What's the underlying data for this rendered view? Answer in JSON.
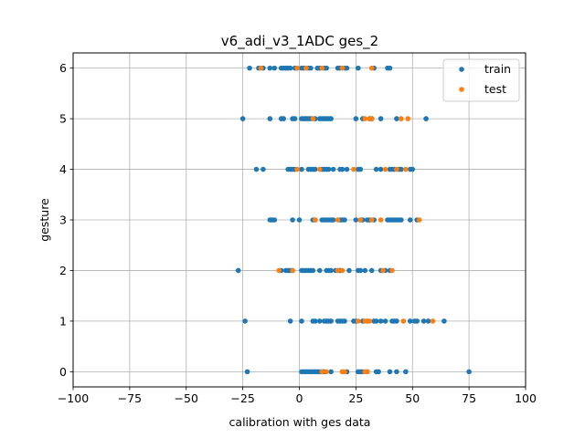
{
  "chart_data": {
    "type": "scatter",
    "title": "v6_adi_v3_1ADC ges_2",
    "xlabel": "calibration with ges data",
    "ylabel": "gesture",
    "xlim": [
      -100,
      100
    ],
    "ylim": [
      -0.3,
      6.3
    ],
    "xticks": [
      -100,
      -75,
      -50,
      -25,
      0,
      25,
      50,
      75,
      100
    ],
    "xtick_labels": [
      "−100",
      "−75",
      "−50",
      "−25",
      "0",
      "25",
      "50",
      "75",
      "100"
    ],
    "yticks": [
      0,
      1,
      2,
      3,
      4,
      5,
      6
    ],
    "ytick_labels": [
      "0",
      "1",
      "2",
      "3",
      "4",
      "5",
      "6"
    ],
    "grid": true,
    "legend_position": "top-right",
    "series": [
      {
        "name": "train",
        "color": "#1f77b4",
        "points": [
          [
            -23,
            0
          ],
          [
            1,
            0
          ],
          [
            2,
            0
          ],
          [
            3,
            0
          ],
          [
            4,
            0
          ],
          [
            5,
            0
          ],
          [
            6,
            0
          ],
          [
            7,
            0
          ],
          [
            8,
            0
          ],
          [
            9,
            0
          ],
          [
            10,
            0
          ],
          [
            11,
            0
          ],
          [
            14,
            0
          ],
          [
            19,
            0
          ],
          [
            21,
            0
          ],
          [
            26,
            0
          ],
          [
            27,
            0
          ],
          [
            28,
            0
          ],
          [
            30,
            0
          ],
          [
            34,
            0
          ],
          [
            35,
            0
          ],
          [
            40,
            0
          ],
          [
            43,
            0
          ],
          [
            47,
            0
          ],
          [
            75,
            0
          ],
          [
            -24,
            1
          ],
          [
            -4,
            1
          ],
          [
            1,
            1
          ],
          [
            6,
            1
          ],
          [
            7,
            1
          ],
          [
            9,
            1
          ],
          [
            11,
            1
          ],
          [
            12,
            1
          ],
          [
            13,
            1
          ],
          [
            14,
            1
          ],
          [
            17,
            1
          ],
          [
            18,
            1
          ],
          [
            19,
            1
          ],
          [
            20,
            1
          ],
          [
            24,
            1
          ],
          [
            25,
            1
          ],
          [
            28,
            1
          ],
          [
            30,
            1
          ],
          [
            33,
            1
          ],
          [
            34,
            1
          ],
          [
            36,
            1
          ],
          [
            38,
            1
          ],
          [
            41,
            1
          ],
          [
            42,
            1
          ],
          [
            43,
            1
          ],
          [
            49,
            1
          ],
          [
            51,
            1
          ],
          [
            52,
            1
          ],
          [
            55,
            1
          ],
          [
            57,
            1
          ],
          [
            64,
            1
          ],
          [
            -27,
            2
          ],
          [
            -8,
            2
          ],
          [
            -6,
            2
          ],
          [
            -5,
            2
          ],
          [
            -4,
            2
          ],
          [
            -3,
            2
          ],
          [
            1,
            2
          ],
          [
            2,
            2
          ],
          [
            3,
            2
          ],
          [
            4,
            2
          ],
          [
            5,
            2
          ],
          [
            6,
            2
          ],
          [
            9,
            2
          ],
          [
            12,
            2
          ],
          [
            13,
            2
          ],
          [
            14,
            2
          ],
          [
            16,
            2
          ],
          [
            17,
            2
          ],
          [
            18,
            2
          ],
          [
            22,
            2
          ],
          [
            26,
            2
          ],
          [
            27,
            2
          ],
          [
            29,
            2
          ],
          [
            32,
            2
          ],
          [
            36,
            2
          ],
          [
            38,
            2
          ],
          [
            40,
            2
          ],
          [
            -13,
            3
          ],
          [
            -12,
            3
          ],
          [
            -11,
            3
          ],
          [
            -3,
            3
          ],
          [
            0,
            3
          ],
          [
            6,
            3
          ],
          [
            7,
            3
          ],
          [
            10,
            3
          ],
          [
            11,
            3
          ],
          [
            12,
            3
          ],
          [
            13,
            3
          ],
          [
            14,
            3
          ],
          [
            15,
            3
          ],
          [
            18,
            3
          ],
          [
            19,
            3
          ],
          [
            20,
            3
          ],
          [
            25,
            3
          ],
          [
            27,
            3
          ],
          [
            28,
            3
          ],
          [
            30,
            3
          ],
          [
            31,
            3
          ],
          [
            33,
            3
          ],
          [
            39,
            3
          ],
          [
            40,
            3
          ],
          [
            41,
            3
          ],
          [
            42,
            3
          ],
          [
            43,
            3
          ],
          [
            44,
            3
          ],
          [
            45,
            3
          ],
          [
            49,
            3
          ],
          [
            52,
            3
          ],
          [
            -19,
            4
          ],
          [
            -16,
            4
          ],
          [
            -5,
            4
          ],
          [
            -4,
            4
          ],
          [
            -3,
            4
          ],
          [
            -2,
            4
          ],
          [
            1,
            4
          ],
          [
            4,
            4
          ],
          [
            5,
            4
          ],
          [
            6,
            4
          ],
          [
            7,
            4
          ],
          [
            10,
            4
          ],
          [
            11,
            4
          ],
          [
            12,
            4
          ],
          [
            13,
            4
          ],
          [
            15,
            4
          ],
          [
            18,
            4
          ],
          [
            19,
            4
          ],
          [
            21,
            4
          ],
          [
            26,
            4
          ],
          [
            27,
            4
          ],
          [
            34,
            4
          ],
          [
            36,
            4
          ],
          [
            40,
            4
          ],
          [
            41,
            4
          ],
          [
            42,
            4
          ],
          [
            44,
            4
          ],
          [
            45,
            4
          ],
          [
            49,
            4
          ],
          [
            50,
            4
          ],
          [
            -25,
            5
          ],
          [
            -13,
            5
          ],
          [
            -8,
            5
          ],
          [
            -7,
            5
          ],
          [
            -3,
            5
          ],
          [
            -2,
            5
          ],
          [
            1,
            5
          ],
          [
            2,
            5
          ],
          [
            3,
            5
          ],
          [
            4,
            5
          ],
          [
            5,
            5
          ],
          [
            7,
            5
          ],
          [
            9,
            5
          ],
          [
            10,
            5
          ],
          [
            11,
            5
          ],
          [
            12,
            5
          ],
          [
            13,
            5
          ],
          [
            14,
            5
          ],
          [
            25,
            5
          ],
          [
            28,
            5
          ],
          [
            31,
            5
          ],
          [
            32,
            5
          ],
          [
            36,
            5
          ],
          [
            43,
            5
          ],
          [
            56,
            5
          ],
          [
            -22,
            6
          ],
          [
            -18,
            6
          ],
          [
            -16,
            6
          ],
          [
            -13,
            6
          ],
          [
            -11,
            6
          ],
          [
            -8,
            6
          ],
          [
            -7,
            6
          ],
          [
            -6,
            6
          ],
          [
            -5,
            6
          ],
          [
            -4,
            6
          ],
          [
            -2,
            6
          ],
          [
            -1,
            6
          ],
          [
            1,
            6
          ],
          [
            2,
            6
          ],
          [
            4,
            6
          ],
          [
            5,
            6
          ],
          [
            8,
            6
          ],
          [
            9,
            6
          ],
          [
            11,
            6
          ],
          [
            12,
            6
          ],
          [
            17,
            6
          ],
          [
            18,
            6
          ],
          [
            20,
            6
          ],
          [
            21,
            6
          ],
          [
            26,
            6
          ],
          [
            33,
            6
          ],
          [
            39,
            6
          ],
          [
            40,
            6
          ]
        ]
      },
      {
        "name": "test",
        "color": "#ff7f0e",
        "points": [
          [
            10,
            0
          ],
          [
            12,
            0
          ],
          [
            19,
            0
          ],
          [
            20,
            0
          ],
          [
            29,
            0
          ],
          [
            30,
            0
          ],
          [
            26,
            1
          ],
          [
            29,
            1
          ],
          [
            30,
            1
          ],
          [
            31,
            1
          ],
          [
            46,
            1
          ],
          [
            59,
            1
          ],
          [
            -9,
            2
          ],
          [
            -3,
            2
          ],
          [
            17,
            2
          ],
          [
            19,
            2
          ],
          [
            37,
            2
          ],
          [
            41,
            2
          ],
          [
            7,
            3
          ],
          [
            17,
            3
          ],
          [
            27,
            3
          ],
          [
            32,
            3
          ],
          [
            36,
            3
          ],
          [
            53,
            3
          ],
          [
            -1,
            4
          ],
          [
            9,
            4
          ],
          [
            24,
            4
          ],
          [
            38,
            4
          ],
          [
            43,
            4
          ],
          [
            47,
            4
          ],
          [
            6,
            5
          ],
          [
            29,
            5
          ],
          [
            31,
            5
          ],
          [
            32,
            5
          ],
          [
            45,
            5
          ],
          [
            48,
            5
          ],
          [
            -17,
            6
          ],
          [
            -1,
            6
          ],
          [
            3,
            6
          ],
          [
            10,
            6
          ],
          [
            19,
            6
          ],
          [
            32,
            6
          ]
        ]
      }
    ]
  }
}
